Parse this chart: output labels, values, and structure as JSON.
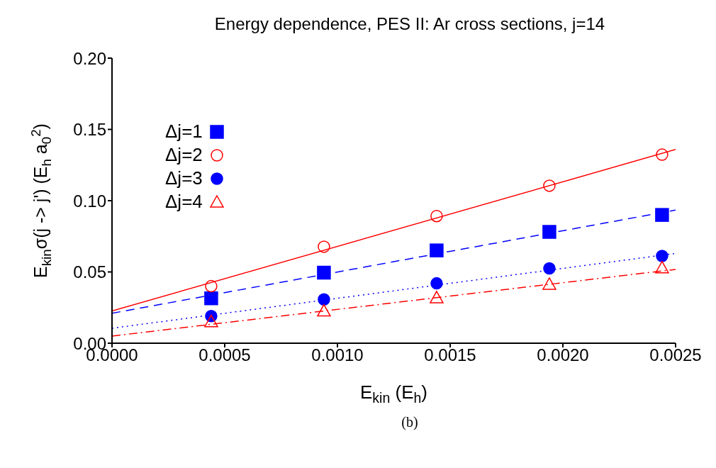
{
  "chart_data": {
    "type": "scatter",
    "title": "Energy dependence, PES II: Ar cross sections, j=14",
    "xlabel": "E$_{kin}$ (E$_{h}$)",
    "ylabel": "E$_{kin}$σ(j -> j') (E$_{h}$ a$_{0}$$^{2}$)",
    "xlim": [
      0,
      0.0025
    ],
    "xticks": [
      {
        "value": 0,
        "label": "0.0000"
      },
      0.0005,
      {
        "value": 0.001,
        "label": "0.0010"
      },
      0.0015,
      {
        "value": 0.002,
        "label": "0.0020"
      },
      0.0025
    ],
    "ylim": [
      0,
      0.2
    ],
    "yticks": [
      {
        "value": 0,
        "label": "0.00"
      },
      0.05,
      {
        "value": 0.1,
        "label": "0.10"
      },
      0.15,
      {
        "value": 0.2,
        "label": "0.20"
      }
    ],
    "grid": false,
    "legend": "top left",
    "series": [
      {
        "name": "Δj=1",
        "type": "scatter",
        "marker": "square",
        "color": "#0000ff",
        "x": [
          0.00044,
          0.00094,
          0.00144,
          0.00194,
          0.00244
        ],
        "values": [
          0.0315,
          0.0495,
          0.0651,
          0.0781,
          0.09
        ]
      },
      {
        "name": "Δj=2",
        "type": "scatter",
        "marker": "circle",
        "color": "#ff0000",
        "x": [
          0.00044,
          0.00094,
          0.00144,
          0.00194,
          0.00244
        ],
        "values": [
          0.04,
          0.0677,
          0.0892,
          0.1105,
          0.1323
        ]
      },
      {
        "name": "Δj=3",
        "type": "scatter",
        "marker": "circle",
        "color": "#0000ff",
        "x": [
          0.00044,
          0.00094,
          0.00144,
          0.00194,
          0.00244
        ],
        "values": [
          0.019,
          0.0307,
          0.042,
          0.0525,
          0.0612
        ]
      },
      {
        "name": "Δj=4",
        "type": "scatter",
        "marker": "triangle",
        "color": "#ff0000",
        "x": [
          0.00044,
          0.00094,
          0.00144,
          0.00194,
          0.00244
        ],
        "values": [
          0.0151,
          0.0226,
          0.0319,
          0.0413,
          0.0529
        ]
      },
      {
        "type": "line",
        "marker": "none",
        "line_style": "dashed",
        "color": "#0000ff",
        "x": [
          0,
          0.0025
        ],
        "values": [
          0.021,
          0.0934
        ]
      },
      {
        "type": "line",
        "marker": "none",
        "line_style": "solid",
        "color": "#ff0000",
        "x": [
          0,
          0.0025
        ],
        "values": [
          0.0226,
          0.1359
        ]
      },
      {
        "type": "line",
        "marker": "none",
        "line_style": "dotted",
        "color": "#0000ff",
        "x": [
          0,
          0.0025
        ],
        "values": [
          0.0105,
          0.063
        ]
      },
      {
        "type": "line",
        "marker": "none",
        "line_style": "dashdot",
        "color": "#ff0000",
        "x": [
          0,
          0.0025
        ],
        "values": [
          0.005,
          0.0518
        ]
      }
    ],
    "annotations": [
      "(b)"
    ]
  }
}
